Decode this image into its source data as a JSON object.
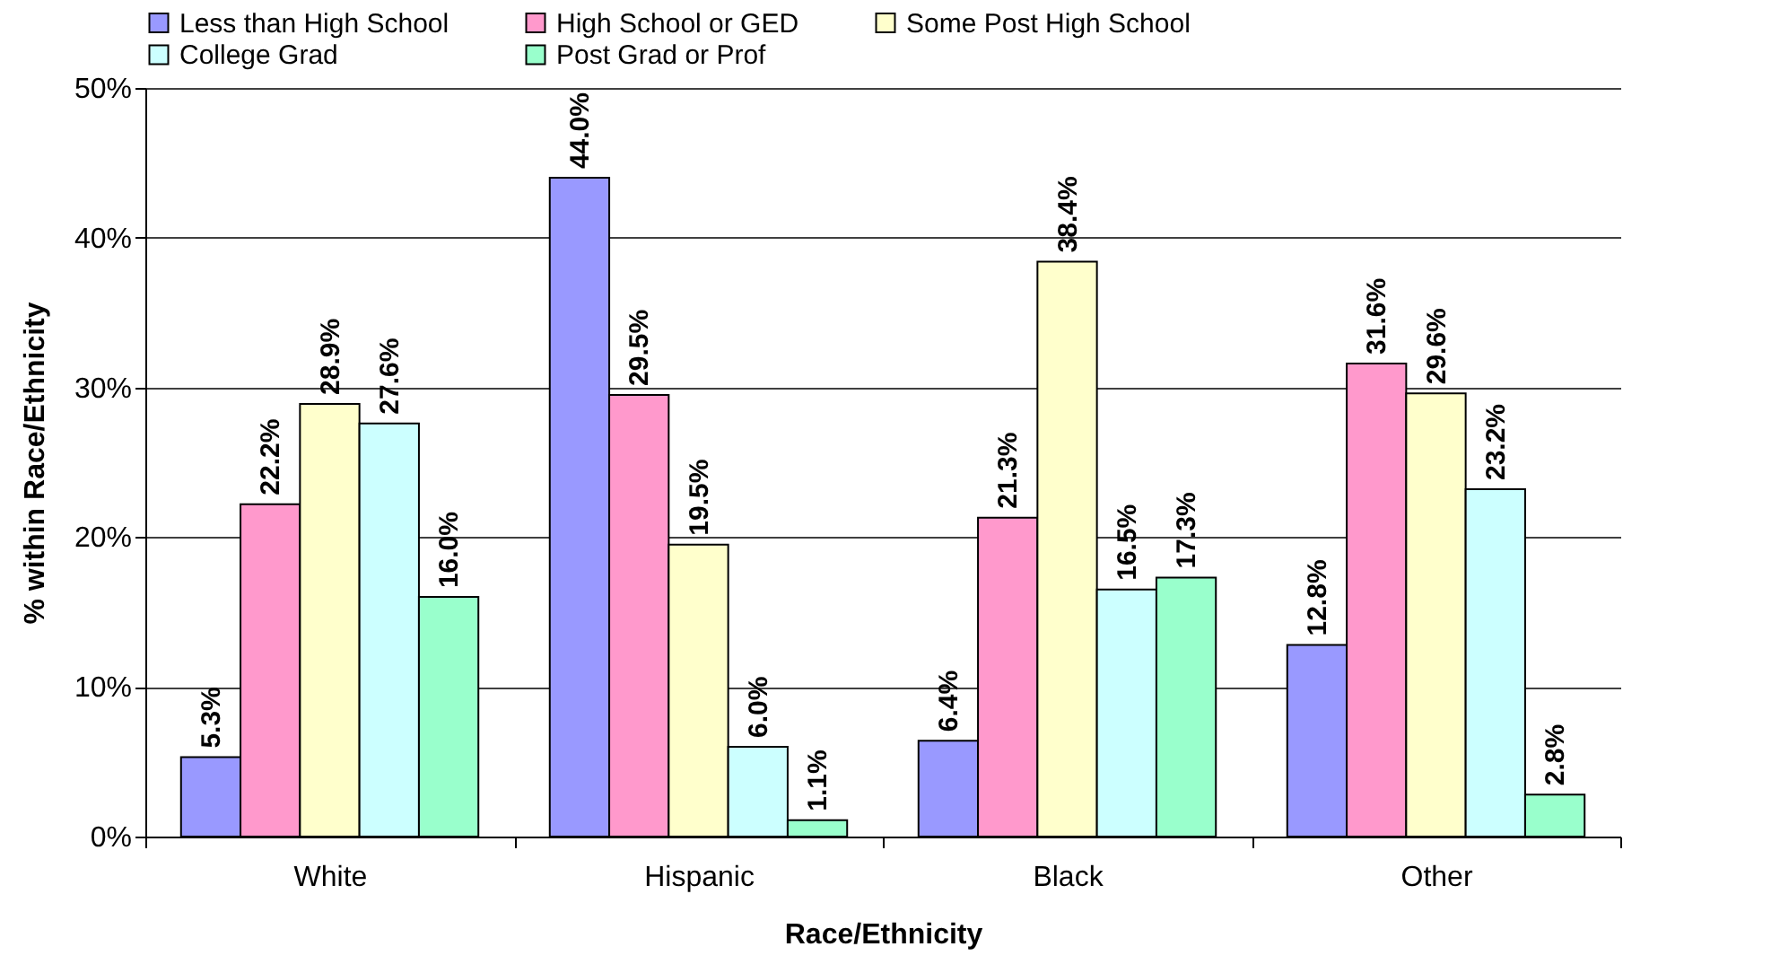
{
  "chart_data": {
    "type": "bar",
    "xlabel": "Race/Ethnicity",
    "ylabel": "% within Race/Ethnicity",
    "categories": [
      "White",
      "Hispanic",
      "Black",
      "Other"
    ],
    "series": [
      {
        "name": "Less than High School",
        "color": "#9999ff",
        "values": [
          5.3,
          44.0,
          6.4,
          12.8
        ],
        "value_labels": [
          "5.3%",
          "44.0%",
          "6.4%",
          "12.8%"
        ]
      },
      {
        "name": "High School or GED",
        "color": "#ff99cc",
        "values": [
          22.2,
          29.5,
          21.3,
          31.6
        ],
        "value_labels": [
          "22.2%",
          "29.5%",
          "21.3%",
          "31.6%"
        ]
      },
      {
        "name": "Some Post High School",
        "color": "#ffffcc",
        "values": [
          28.9,
          19.5,
          38.4,
          29.6
        ],
        "value_labels": [
          "28.9%",
          "19.5%",
          "38.4%",
          "29.6%"
        ]
      },
      {
        "name": "College Grad",
        "color": "#ccffff",
        "values": [
          27.6,
          6.0,
          16.5,
          23.2
        ],
        "value_labels": [
          "27.6%",
          "6.0%",
          "16.5%",
          "23.2%"
        ]
      },
      {
        "name": "Post Grad or Prof",
        "color": "#99ffcc",
        "values": [
          16.0,
          1.1,
          17.3,
          2.8
        ],
        "value_labels": [
          "16.0%",
          "1.1%",
          "17.3%",
          "2.8%"
        ]
      }
    ],
    "ylim": [
      0,
      50
    ],
    "yticks": [
      {
        "value": 0,
        "label": "0%"
      },
      {
        "value": 10,
        "label": "10%"
      },
      {
        "value": 20,
        "label": "20%"
      },
      {
        "value": 30,
        "label": "30%"
      },
      {
        "value": 40,
        "label": "40%"
      },
      {
        "value": 50,
        "label": "50%"
      }
    ],
    "grid": "y",
    "legend": "top"
  }
}
